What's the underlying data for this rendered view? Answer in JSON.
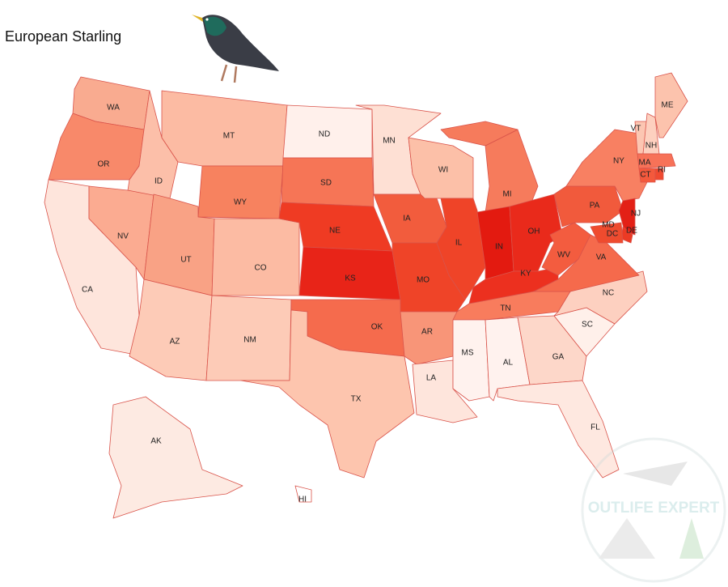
{
  "title": "European Starling",
  "watermark": "OUTLIFE EXPERT",
  "states": [
    {
      "label": "WA",
      "color": "#f9ab90"
    },
    {
      "label": "OR",
      "color": "#f8896a"
    },
    {
      "label": "CA",
      "color": "#fee5dc"
    },
    {
      "label": "NV",
      "color": "#fbab91"
    },
    {
      "label": "ID",
      "color": "#fcbfa9"
    },
    {
      "label": "MT",
      "color": "#fcbba3"
    },
    {
      "label": "WY",
      "color": "#f7825f"
    },
    {
      "label": "UT",
      "color": "#f9a285"
    },
    {
      "label": "CO",
      "color": "#fcbba3"
    },
    {
      "label": "AZ",
      "color": "#fdcbb7"
    },
    {
      "label": "NM",
      "color": "#fdcbb7"
    },
    {
      "label": "ND",
      "color": "#fff0eb"
    },
    {
      "label": "SD",
      "color": "#f67556"
    },
    {
      "label": "NE",
      "color": "#ef3b23"
    },
    {
      "label": "KS",
      "color": "#e82418"
    },
    {
      "label": "OK",
      "color": "#f56b4d"
    },
    {
      "label": "TX",
      "color": "#fdc5ae"
    },
    {
      "label": "MN",
      "color": "#fee0d4"
    },
    {
      "label": "IA",
      "color": "#f25c3d"
    },
    {
      "label": "MO",
      "color": "#ef4428"
    },
    {
      "label": "AR",
      "color": "#f89578"
    },
    {
      "label": "LA",
      "color": "#fee5dc"
    },
    {
      "label": "WI",
      "color": "#fcc0a8"
    },
    {
      "label": "IL",
      "color": "#ef4428"
    },
    {
      "label": "MI",
      "color": "#f67b5c"
    },
    {
      "label": "IN",
      "color": "#e31a10"
    },
    {
      "label": "OH",
      "color": "#e92a1b"
    },
    {
      "label": "KY",
      "color": "#ec301f"
    },
    {
      "label": "TN",
      "color": "#f87c5d"
    },
    {
      "label": "MS",
      "color": "#fff2ee"
    },
    {
      "label": "AL",
      "color": "#fff2ee"
    },
    {
      "label": "GA",
      "color": "#fdd7c9"
    },
    {
      "label": "FL",
      "color": "#fee8e0"
    },
    {
      "label": "SC",
      "color": "#fff0ea"
    },
    {
      "label": "NC",
      "color": "#fdd0c0"
    },
    {
      "label": "VA",
      "color": "#f56a4c"
    },
    {
      "label": "WV",
      "color": "#f35c3f"
    },
    {
      "label": "PA",
      "color": "#f15a3c"
    },
    {
      "label": "NY",
      "color": "#f88062"
    },
    {
      "label": "NJ",
      "color": "#e32016"
    },
    {
      "label": "DE",
      "color": "#ec3a24"
    },
    {
      "label": "MD",
      "color": "#ef4b2e"
    },
    {
      "label": "DC",
      "color": "#ef4b2e"
    },
    {
      "label": "VT",
      "color": "#fcc6b2"
    },
    {
      "label": "NH",
      "color": "#fdd0bf"
    },
    {
      "label": "ME",
      "color": "#fcc3ad"
    },
    {
      "label": "MA",
      "color": "#f77258"
    },
    {
      "label": "CT",
      "color": "#f4593c"
    },
    {
      "label": "RI",
      "color": "#f04a30"
    },
    {
      "label": "AK",
      "color": "#fdeae2"
    },
    {
      "label": "HI",
      "color": "#ffffff"
    }
  ]
}
